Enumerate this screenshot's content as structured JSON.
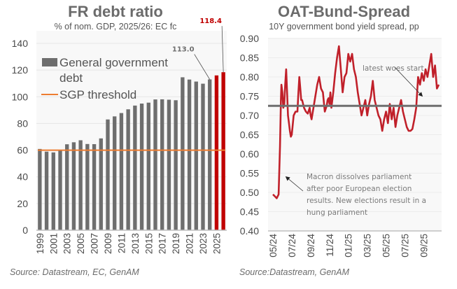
{
  "chart_data": [
    {
      "type": "bar",
      "title": "FR debt ratio",
      "subtitle": "% of nom. GDP, 2025/26: EC fc",
      "xlabel": "",
      "ylabel": "",
      "ylim": [
        0,
        140
      ],
      "yticks": [
        "0",
        "20",
        "40",
        "60",
        "80",
        "100",
        "120",
        "140"
      ],
      "xtick_labels": [
        "1999",
        "2001",
        "2003",
        "2005",
        "2007",
        "2009",
        "2011",
        "2013",
        "2015",
        "2017",
        "2019",
        "2021",
        "2023",
        "2025"
      ],
      "categories": [
        "1999",
        "2000",
        "2001",
        "2002",
        "2003",
        "2004",
        "2005",
        "2006",
        "2007",
        "2008",
        "2009",
        "2010",
        "2011",
        "2012",
        "2013",
        "2014",
        "2015",
        "2016",
        "2017",
        "2018",
        "2019",
        "2020",
        "2021",
        "2022",
        "2023",
        "2024",
        "2025",
        "2026"
      ],
      "series": [
        {
          "name": "General government debt",
          "color": "#6e6e6e",
          "forecast_color": "#c00000",
          "forecast_from": "2025",
          "values": [
            60.9,
            58.9,
            58.3,
            60.3,
            64.4,
            65.9,
            67.4,
            64.6,
            64.5,
            68.8,
            83.0,
            85.3,
            87.8,
            90.6,
            93.4,
            94.9,
            95.6,
            98.0,
            98.1,
            97.8,
            97.4,
            114.6,
            112.9,
            111.4,
            109.8,
            113.0,
            116.0,
            118.4
          ]
        },
        {
          "name": "SGP threshold",
          "color": "#ed7d31",
          "type": "line",
          "value": 60
        }
      ],
      "legend": {
        "placement": "top-left",
        "entries": [
          {
            "label_line1": "General government",
            "label_line2": "debt"
          },
          {
            "label_line1": "SGP threshold"
          }
        ]
      },
      "data_labels": [
        {
          "category": "2024",
          "text": "113.0",
          "color": "#6e6e6e"
        },
        {
          "category": "2026",
          "text": "118.4",
          "color": "#c00000"
        }
      ],
      "grid": true,
      "source": "Source: Datastream, EC, GenAM"
    },
    {
      "type": "line",
      "title": "OAT-Bund-Spread",
      "subtitle": "10Y government bond yield spread, pp",
      "xlabel": "",
      "ylabel": "",
      "ylim": [
        0.4,
        0.9
      ],
      "yticks": [
        "0.40",
        "0.45",
        "0.50",
        "0.55",
        "0.60",
        "0.65",
        "0.70",
        "0.75",
        "0.80",
        "0.85",
        "0.90"
      ],
      "xlim_months": [
        0,
        17.6
      ],
      "xtick_labels": [
        "05/24",
        "07/24",
        "09/24",
        "11/24",
        "01/25",
        "03/25",
        "05/25",
        "07/25",
        "09/25"
      ],
      "series": [
        {
          "name": "OAT-Bund spread",
          "color": "#c0202a",
          "x_months_since_may24": [
            0.0,
            0.2,
            0.4,
            0.6,
            0.75,
            0.85,
            0.9,
            1.0,
            1.1,
            1.2,
            1.3,
            1.4,
            1.5,
            1.6,
            1.7,
            1.8,
            1.9,
            2.0,
            2.2,
            2.4,
            2.6,
            2.7,
            2.8,
            2.9,
            3.0,
            3.1,
            3.3,
            3.5,
            3.7,
            3.9,
            4.0,
            4.1,
            4.3,
            4.5,
            4.7,
            4.9,
            5.1,
            5.3,
            5.5,
            5.7,
            5.8,
            5.9,
            6.0,
            6.1,
            6.2,
            6.4,
            6.6,
            6.8,
            7.0,
            7.2,
            7.4,
            7.6,
            7.8,
            8.0,
            8.2,
            8.4,
            8.6,
            8.8,
            9.0,
            9.2,
            9.4,
            9.6,
            9.8,
            10.0,
            10.2,
            10.4,
            10.6,
            10.8,
            11.0,
            11.2,
            11.4,
            11.6,
            11.8,
            12.0,
            12.2,
            12.4,
            12.6,
            12.8,
            13.0,
            13.2,
            13.4,
            13.6,
            13.8,
            14.0,
            14.2,
            14.4,
            14.6,
            14.8,
            15.0,
            15.2,
            15.4,
            15.6,
            15.8,
            16.0,
            16.2,
            16.4,
            16.6,
            16.8,
            17.0,
            17.2,
            17.4,
            17.6
          ],
          "values": [
            0.495,
            0.49,
            0.485,
            0.495,
            0.62,
            0.74,
            0.78,
            0.76,
            0.72,
            0.73,
            0.78,
            0.82,
            0.76,
            0.7,
            0.68,
            0.66,
            0.645,
            0.65,
            0.7,
            0.71,
            0.71,
            0.76,
            0.8,
            0.77,
            0.74,
            0.74,
            0.72,
            0.71,
            0.705,
            0.72,
            0.7,
            0.69,
            0.72,
            0.75,
            0.78,
            0.8,
            0.77,
            0.76,
            0.71,
            0.725,
            0.74,
            0.745,
            0.73,
            0.76,
            0.72,
            0.76,
            0.81,
            0.85,
            0.88,
            0.82,
            0.76,
            0.8,
            0.81,
            0.86,
            0.84,
            0.86,
            0.82,
            0.8,
            0.76,
            0.73,
            0.7,
            0.72,
            0.74,
            0.7,
            0.73,
            0.75,
            0.79,
            0.74,
            0.72,
            0.7,
            0.69,
            0.66,
            0.69,
            0.71,
            0.68,
            0.73,
            0.69,
            0.72,
            0.67,
            0.7,
            0.72,
            0.74,
            0.71,
            0.69,
            0.67,
            0.66,
            0.66,
            0.665,
            0.69,
            0.72,
            0.8,
            0.78,
            0.81,
            0.79,
            0.82,
            0.8,
            0.83,
            0.86,
            0.8,
            0.83,
            0.77,
            0.78
          ]
        },
        {
          "name": "Average",
          "color": "#6e6e6e",
          "type": "hline",
          "value": 0.725
        }
      ],
      "annotations": [
        {
          "text_lines": [
            "Macron dissolves parliament",
            "after poor European election",
            "results. New elections result in a",
            "hung parliament"
          ]
        },
        {
          "text_lines": [
            "latest woes start"
          ]
        }
      ],
      "grid": true,
      "source": "Source:Datastream, GenAM"
    }
  ]
}
